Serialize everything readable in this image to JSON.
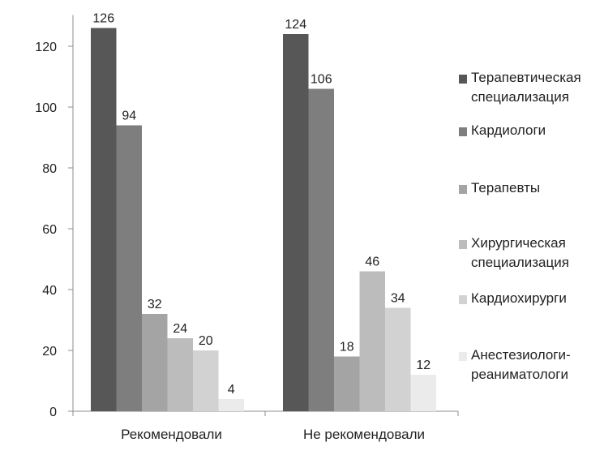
{
  "chart_data": {
    "type": "bar",
    "categories": [
      "Рекомендовали",
      "Не рекомендовали"
    ],
    "ylim": [
      0,
      130
    ],
    "yticks": [
      0,
      20,
      40,
      60,
      80,
      100,
      120
    ],
    "grid": false,
    "legend_position": "right",
    "series": [
      {
        "name": "Терапевтическая специализация",
        "name_lines": [
          "Терапевтическая",
          "специализация"
        ],
        "color": "#575757",
        "values": [
          126,
          124
        ]
      },
      {
        "name": "Кардиологи",
        "name_lines": [
          "Кардиологи"
        ],
        "color": "#7e7e7e",
        "values": [
          94,
          106
        ]
      },
      {
        "name": "Терапевты",
        "name_lines": [
          "Терапевты"
        ],
        "color": "#a4a4a4",
        "values": [
          32,
          18
        ]
      },
      {
        "name": "Хирургическая специализация",
        "name_lines": [
          "Хирургическая",
          "специализация"
        ],
        "color": "#bcbcbc",
        "values": [
          24,
          46
        ]
      },
      {
        "name": "Кардиохирурги",
        "name_lines": [
          "Кардиохирурги"
        ],
        "color": "#d2d2d2",
        "values": [
          20,
          34
        ]
      },
      {
        "name": "Анестезиологи-реаниматологи",
        "name_lines": [
          "Анестезиологи-",
          "реаниматологи"
        ],
        "color": "#ebebeb",
        "values": [
          4,
          12
        ]
      }
    ]
  }
}
